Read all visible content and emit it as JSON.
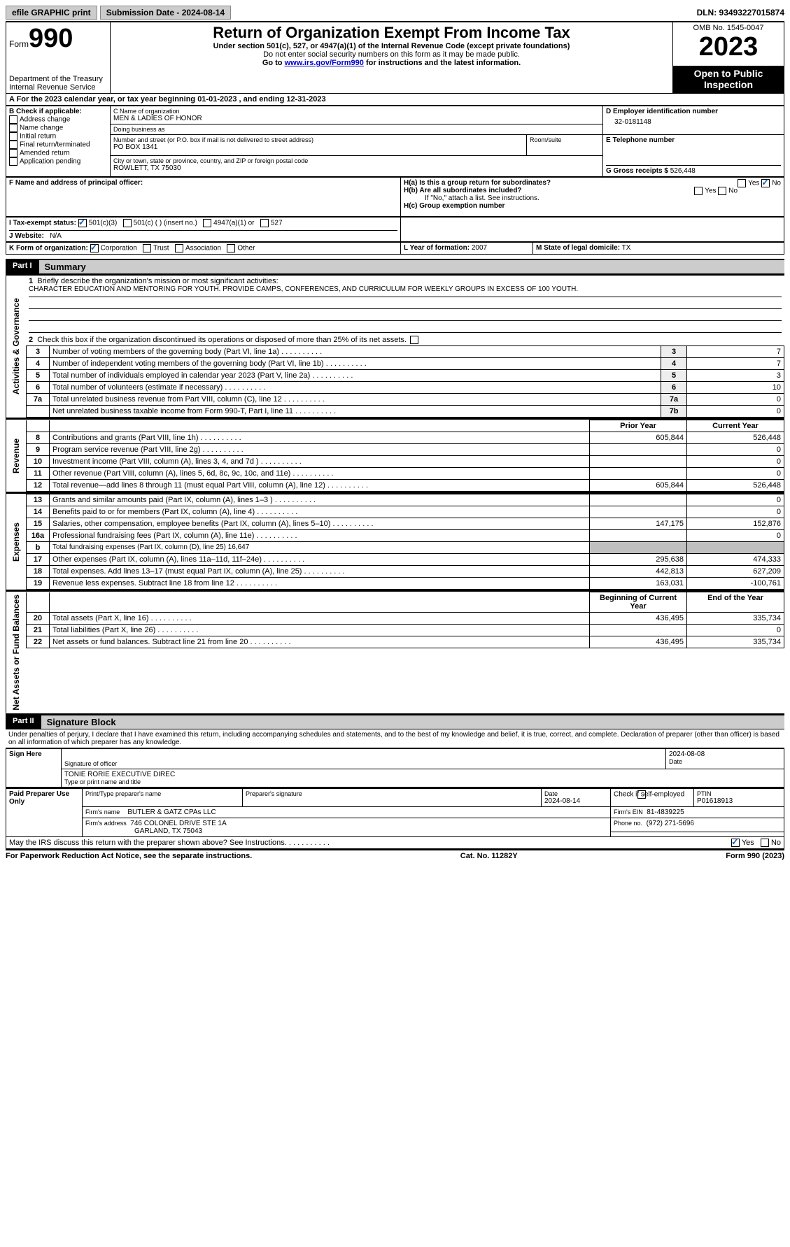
{
  "topbar": {
    "efile": "efile GRAPHIC print",
    "submission_label": "Submission Date - 2024-08-14",
    "dln": "DLN: 93493227015874"
  },
  "header": {
    "form_prefix": "Form",
    "form_no": "990",
    "dept": "Department of the Treasury",
    "irs": "Internal Revenue Service",
    "title": "Return of Organization Exempt From Income Tax",
    "sub": "Under section 501(c), 527, or 4947(a)(1) of the Internal Revenue Code (except private foundations)",
    "line2": "Do not enter social security numbers on this form as it may be made public.",
    "line3_pre": "Go to ",
    "line3_link": "www.irs.gov/Form990",
    "line3_post": " for instructions and the latest information.",
    "omb": "OMB No. 1545-0047",
    "year": "2023",
    "open": "Open to Public Inspection"
  },
  "a_line": {
    "text": "A  For the 2023 calendar year, or tax year beginning 01-01-2023    , and ending 12-31-2023"
  },
  "box_b": {
    "label": "B Check if applicable:",
    "items": [
      "Address change",
      "Name change",
      "Initial return",
      "Final return/terminated",
      "Amended return",
      "Application pending"
    ]
  },
  "box_c": {
    "name_label": "C Name of organization",
    "name": "MEN & LADIES OF HONOR",
    "dba_label": "Doing business as",
    "dba": "",
    "street_label": "Number and street (or P.O. box if mail is not delivered to street address)",
    "street": "PO BOX 1341",
    "room_label": "Room/suite",
    "room": "",
    "city_label": "City or town, state or province, country, and ZIP or foreign postal code",
    "city": "ROWLETT, TX   75030"
  },
  "box_d": {
    "label": "D Employer identification number",
    "value": "32-0181148"
  },
  "box_e": {
    "label": "E Telephone number",
    "value": ""
  },
  "box_g": {
    "label": "G Gross receipts $",
    "value": "526,448"
  },
  "box_f": {
    "label": "F  Name and address of principal officer:",
    "value": ""
  },
  "box_h": {
    "a_label": "H(a)  Is this a group return for subordinates?",
    "a_no": "No",
    "a_yes": "Yes",
    "b_label": "H(b)  Are all subordinates included?",
    "b_note": "If \"No,\" attach a list. See instructions.",
    "c_label": "H(c)  Group exemption number",
    "yes": "Yes",
    "no": "No"
  },
  "box_i": {
    "label": "I    Tax-exempt status:",
    "opt1": "501(c)(3)",
    "opt2": "501(c) (  ) (insert no.)",
    "opt3": "4947(a)(1) or",
    "opt4": "527"
  },
  "box_j": {
    "label": "J   Website:",
    "value": "N/A"
  },
  "box_k": {
    "label": "K Form of organization:",
    "opts": [
      "Corporation",
      "Trust",
      "Association",
      "Other"
    ]
  },
  "box_l": {
    "label": "L Year of formation:",
    "value": "2007"
  },
  "box_m": {
    "label": "M State of legal domicile:",
    "value": "TX"
  },
  "part1": {
    "header": "Part I",
    "title": "Summary",
    "line1_label": "Briefly describe the organization's mission or most significant activities:",
    "mission": "CHARACTER EDUCATION AND MENTORING FOR YOUTH. PROVIDE CAMPS, CONFERENCES, AND CURRICULUM FOR WEEKLY GROUPS IN EXCESS OF 100 YOUTH.",
    "line2": "Check this box      if the organization discontinued its operations or disposed of more than 25% of its net assets.",
    "sections": {
      "ag": "Activities & Governance",
      "rev": "Revenue",
      "exp": "Expenses",
      "na": "Net Assets or Fund Balances"
    },
    "rows_ag": [
      {
        "n": "3",
        "t": "Number of voting members of the governing body (Part VI, line 1a)",
        "box": "3",
        "v": "7"
      },
      {
        "n": "4",
        "t": "Number of independent voting members of the governing body (Part VI, line 1b)",
        "box": "4",
        "v": "7"
      },
      {
        "n": "5",
        "t": "Total number of individuals employed in calendar year 2023 (Part V, line 2a)",
        "box": "5",
        "v": "3"
      },
      {
        "n": "6",
        "t": "Total number of volunteers (estimate if necessary)",
        "box": "6",
        "v": "10"
      },
      {
        "n": "7a",
        "t": "Total unrelated business revenue from Part VIII, column (C), line 12",
        "box": "7a",
        "v": "0"
      },
      {
        "n": "",
        "t": "Net unrelated business taxable income from Form 990-T, Part I, line 11",
        "box": "7b",
        "v": "0"
      }
    ],
    "hdr_prior": "Prior Year",
    "hdr_current": "Current Year",
    "rows_rev": [
      {
        "n": "8",
        "t": "Contributions and grants (Part VIII, line 1h)",
        "p": "605,844",
        "c": "526,448"
      },
      {
        "n": "9",
        "t": "Program service revenue (Part VIII, line 2g)",
        "p": "",
        "c": "0"
      },
      {
        "n": "10",
        "t": "Investment income (Part VIII, column (A), lines 3, 4, and 7d )",
        "p": "",
        "c": "0"
      },
      {
        "n": "11",
        "t": "Other revenue (Part VIII, column (A), lines 5, 6d, 8c, 9c, 10c, and 11e)",
        "p": "",
        "c": "0"
      },
      {
        "n": "12",
        "t": "Total revenue—add lines 8 through 11 (must equal Part VIII, column (A), line 12)",
        "p": "605,844",
        "c": "526,448"
      }
    ],
    "rows_exp": [
      {
        "n": "13",
        "t": "Grants and similar amounts paid (Part IX, column (A), lines 1–3 )",
        "p": "",
        "c": "0"
      },
      {
        "n": "14",
        "t": "Benefits paid to or for members (Part IX, column (A), line 4)",
        "p": "",
        "c": "0"
      },
      {
        "n": "15",
        "t": "Salaries, other compensation, employee benefits (Part IX, column (A), lines 5–10)",
        "p": "147,175",
        "c": "152,876"
      },
      {
        "n": "16a",
        "t": "Professional fundraising fees (Part IX, column (A), line 11e)",
        "p": "",
        "c": "0"
      },
      {
        "n": "b",
        "t": "Total fundraising expenses (Part IX, column (D), line 25) 16,647",
        "grey": true
      },
      {
        "n": "17",
        "t": "Other expenses (Part IX, column (A), lines 11a–11d, 11f–24e)",
        "p": "295,638",
        "c": "474,333"
      },
      {
        "n": "18",
        "t": "Total expenses. Add lines 13–17 (must equal Part IX, column (A), line 25)",
        "p": "442,813",
        "c": "627,209"
      },
      {
        "n": "19",
        "t": "Revenue less expenses. Subtract line 18 from line 12",
        "p": "163,031",
        "c": "-100,761"
      }
    ],
    "hdr_begin": "Beginning of Current Year",
    "hdr_end": "End of the Year",
    "rows_na": [
      {
        "n": "20",
        "t": "Total assets (Part X, line 16)",
        "p": "436,495",
        "c": "335,734"
      },
      {
        "n": "21",
        "t": "Total liabilities (Part X, line 26)",
        "p": "",
        "c": "0"
      },
      {
        "n": "22",
        "t": "Net assets or fund balances. Subtract line 21 from line 20",
        "p": "436,495",
        "c": "335,734"
      }
    ]
  },
  "part2": {
    "header": "Part II",
    "title": "Signature Block",
    "decl": "Under penalties of perjury, I declare that I have examined this return, including accompanying schedules and statements, and to the best of my knowledge and belief, it is true, correct, and complete. Declaration of preparer (other than officer) is based on all information of which preparer has any knowledge.",
    "sign_here": "Sign Here",
    "sig_off_label": "Signature of officer",
    "sig_name": "TONIE RORIE  EXECUTIVE DIREC",
    "type_label": "Type or print name and title",
    "date_label": "Date",
    "date_val": "2024-08-08",
    "paid": "Paid Preparer Use Only",
    "prep_name_label": "Print/Type preparer's name",
    "prep_sig_label": "Preparer's signature",
    "prep_date_label": "Date",
    "prep_date": "2024-08-14",
    "check_label": "Check       if self-employed",
    "ptin_label": "PTIN",
    "ptin": "P01618913",
    "firm_name_label": "Firm's name",
    "firm_name": "BUTLER & GATZ CPAs LLC",
    "firm_ein_label": "Firm's EIN",
    "firm_ein": "81-4839225",
    "firm_addr_label": "Firm's address",
    "firm_addr1": "746 COLONEL DRIVE STE 1A",
    "firm_addr2": "GARLAND, TX  75043",
    "phone_label": "Phone no.",
    "phone": "(972) 271-5696",
    "discuss": "May the IRS discuss this return with the preparer shown above? See Instructions.",
    "yes": "Yes",
    "no": "No"
  },
  "footer": {
    "left": "For Paperwork Reduction Act Notice, see the separate instructions.",
    "mid": "Cat. No. 11282Y",
    "right": "Form 990 (2023)"
  }
}
